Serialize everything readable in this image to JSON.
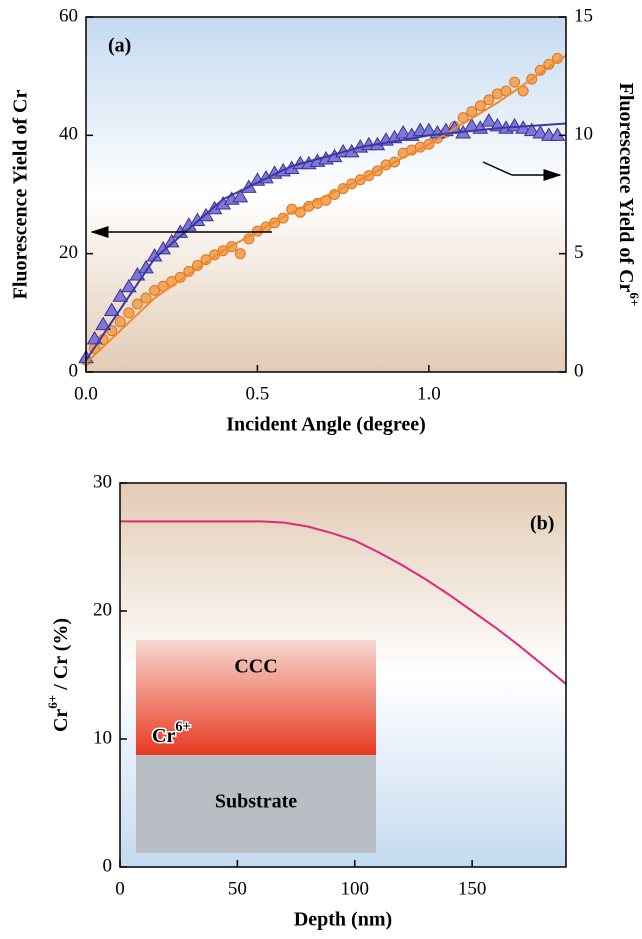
{
  "chart_data": [
    {
      "type": "scatter",
      "label": "(a)",
      "xlabel": "Incident Angle (degree)",
      "ylabel": "Fluorescence Yield of Cr",
      "y2label": {
        "text": "Fluorescence Yield of Cr",
        "sup": "6+"
      },
      "xlim": [
        0,
        1.4
      ],
      "xticks": [
        {
          "value": 0,
          "label": "0.0"
        },
        0.5,
        {
          "value": 1,
          "label": "1.0"
        }
      ],
      "ylim": [
        0,
        60
      ],
      "yticks": [
        0,
        20,
        40,
        60
      ],
      "y2lim": [
        0,
        15
      ],
      "y2ticks": [
        0,
        5,
        10,
        15
      ],
      "x": [
        0,
        0.025,
        0.05,
        0.075,
        0.1,
        0.125,
        0.15,
        0.175,
        0.2,
        0.225,
        0.25,
        0.275,
        0.3,
        0.325,
        0.35,
        0.375,
        0.4,
        0.425,
        0.45,
        0.475,
        0.5,
        0.525,
        0.55,
        0.575,
        0.6,
        0.625,
        0.65,
        0.675,
        0.7,
        0.725,
        0.75,
        0.775,
        0.8,
        0.825,
        0.85,
        0.875,
        0.9,
        0.925,
        0.95,
        0.975,
        1,
        1.025,
        1.05,
        1.075,
        1.1,
        1.125,
        1.15,
        1.175,
        1.2,
        1.225,
        1.25,
        1.275,
        1.3,
        1.325,
        1.35,
        1.375
      ],
      "series": [
        {
          "marker": "circle",
          "color": "#f5a65a",
          "values": [
            2.0,
            4.0,
            5.5,
            7.0,
            8.5,
            10.0,
            11.5,
            12.5,
            13.8,
            14.5,
            15.3,
            16.0,
            17.0,
            18.0,
            19.0,
            19.8,
            20.5,
            21.2,
            20.0,
            22.5,
            23.8,
            24.5,
            25.2,
            26.0,
            27.5,
            27.0,
            28.0,
            28.5,
            29.0,
            30.0,
            31.0,
            31.8,
            32.5,
            33.2,
            34.0,
            35.0,
            35.5,
            37.0,
            37.5,
            38.0,
            38.5,
            39.5,
            40.5,
            41.5,
            43.0,
            44.0,
            45.0,
            46.0,
            47.0,
            47.5,
            49.0,
            47.5,
            49.5,
            51.0,
            52.0,
            53.0
          ]
        },
        {
          "marker": "triangle",
          "color": "#7d78d8",
          "axis": "y2",
          "values": [
            0.6,
            1.4,
            2.0,
            2.6,
            3.2,
            3.6,
            4.1,
            4.4,
            4.9,
            5.2,
            5.5,
            5.9,
            6.2,
            6.4,
            6.6,
            6.9,
            7.1,
            7.3,
            7.4,
            7.8,
            8.1,
            8.2,
            8.4,
            8.5,
            8.6,
            8.8,
            8.8,
            8.9,
            9.0,
            9.1,
            9.3,
            9.3,
            9.5,
            9.6,
            9.6,
            9.8,
            9.9,
            10.1,
            10.0,
            10.2,
            10.2,
            10.1,
            10.2,
            10.3,
            10.1,
            10.4,
            10.3,
            10.6,
            10.4,
            10.3,
            10.4,
            10.3,
            10.2,
            10.1,
            10.0,
            10.0
          ]
        },
        {
          "marker": "line",
          "color": "#f08a2c",
          "x": [
            0,
            0.2,
            0.4,
            0.6,
            0.8,
            1.0,
            1.2,
            1.4
          ],
          "values": [
            1.5,
            12.5,
            20.5,
            27,
            32.5,
            38.5,
            45.5,
            53.5
          ]
        },
        {
          "marker": "line",
          "color": "#3f36a0",
          "axis": "y2",
          "x": [
            0,
            0.2,
            0.4,
            0.6,
            0.8,
            1.0,
            1.2,
            1.4
          ],
          "values": [
            0.5,
            4.8,
            7.3,
            8.7,
            9.5,
            10.0,
            10.3,
            10.5
          ]
        }
      ]
    },
    {
      "type": "line",
      "label": "(b)",
      "xlabel": "Depth (nm)",
      "ylabel": {
        "text": "Cr",
        "sup": "6+",
        "rest": " / Cr (%)"
      },
      "xlim": [
        0,
        190
      ],
      "xticks": [
        0,
        50,
        100,
        150
      ],
      "ylim": [
        0,
        30
      ],
      "yticks": [
        0,
        10,
        20,
        30
      ],
      "inset": {
        "layer": "CCC",
        "ion": {
          "text": "Cr",
          "sup": "6+"
        },
        "substrate": "Substrate"
      },
      "series": [
        {
          "marker": "line",
          "color": "#e0287a",
          "x": [
            0,
            20,
            40,
            50,
            60,
            70,
            80,
            90,
            100,
            110,
            120,
            130,
            140,
            150,
            160,
            170,
            180,
            190
          ],
          "values": [
            27,
            27,
            27,
            27,
            27.0,
            26.9,
            26.6,
            26.1,
            25.5,
            24.6,
            23.6,
            22.5,
            21.3,
            20.0,
            18.7,
            17.3,
            15.8,
            14.3
          ]
        }
      ]
    }
  ]
}
